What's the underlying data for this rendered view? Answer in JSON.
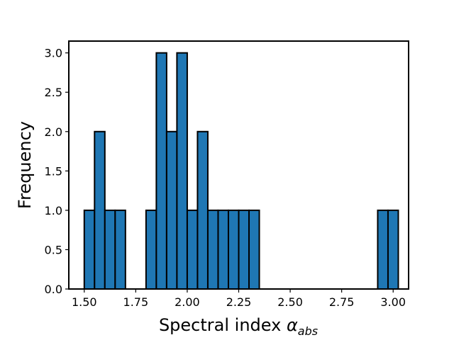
{
  "chart_data": {
    "type": "bar",
    "title": "",
    "xlabel_main": "Spectral index ",
    "xlabel_symbol": "α",
    "xlabel_subscript": "abs",
    "ylabel": "Frequency",
    "xlim": [
      1.425,
      3.075
    ],
    "ylim": [
      0,
      3.15
    ],
    "bin_width": 0.05,
    "bins": [
      {
        "x": 1.525,
        "value": 1
      },
      {
        "x": 1.575,
        "value": 2
      },
      {
        "x": 1.625,
        "value": 1
      },
      {
        "x": 1.675,
        "value": 1
      },
      {
        "x": 1.825,
        "value": 1
      },
      {
        "x": 1.875,
        "value": 3
      },
      {
        "x": 1.925,
        "value": 2
      },
      {
        "x": 1.975,
        "value": 3
      },
      {
        "x": 2.025,
        "value": 1
      },
      {
        "x": 2.075,
        "value": 2
      },
      {
        "x": 2.125,
        "value": 1
      },
      {
        "x": 2.175,
        "value": 1
      },
      {
        "x": 2.225,
        "value": 1
      },
      {
        "x": 2.275,
        "value": 1
      },
      {
        "x": 2.325,
        "value": 1
      },
      {
        "x": 2.95,
        "value": 1
      },
      {
        "x": 3.0,
        "value": 1
      }
    ],
    "x_ticks": [
      {
        "value": 1.5,
        "label": "1.50"
      },
      {
        "value": 1.75,
        "label": "1.75"
      },
      {
        "value": 2.0,
        "label": "2.00"
      },
      {
        "value": 2.25,
        "label": "2.25"
      },
      {
        "value": 2.5,
        "label": "2.50"
      },
      {
        "value": 2.75,
        "label": "2.75"
      },
      {
        "value": 3.0,
        "label": "3.00"
      }
    ],
    "y_ticks": [
      {
        "value": 0.0,
        "label": "0.0"
      },
      {
        "value": 0.5,
        "label": "0.5"
      },
      {
        "value": 1.0,
        "label": "1.0"
      },
      {
        "value": 1.5,
        "label": "1.5"
      },
      {
        "value": 2.0,
        "label": "2.0"
      },
      {
        "value": 2.5,
        "label": "2.5"
      },
      {
        "value": 3.0,
        "label": "3.0"
      }
    ],
    "grid": false,
    "colors": {
      "bar_fill": "#1f77b4",
      "bar_edge": "#000000"
    }
  }
}
